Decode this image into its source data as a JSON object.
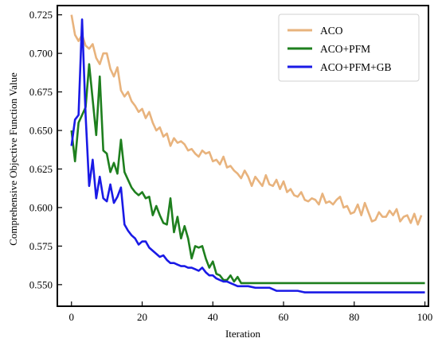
{
  "chart_data": {
    "type": "line",
    "title": "",
    "xlabel": "Iteration",
    "ylabel": "Comprehensive Objective Function Value",
    "xlim": [
      -4,
      101
    ],
    "ylim": [
      0.536,
      0.731
    ],
    "xticks": [
      0,
      20,
      40,
      60,
      80,
      100
    ],
    "yticks": [
      0.55,
      0.575,
      0.6,
      0.625,
      0.65,
      0.675,
      0.7,
      0.725
    ],
    "ytick_labels": [
      "0.550",
      "0.575",
      "0.600",
      "0.625",
      "0.650",
      "0.675",
      "0.700",
      "0.725"
    ],
    "grid": false,
    "legend_position": "top-right",
    "series": [
      {
        "name": "ACO",
        "color": "#E8B37D",
        "x": [
          0,
          1,
          2,
          3,
          4,
          5,
          6,
          7,
          8,
          9,
          10,
          11,
          12,
          13,
          14,
          15,
          16,
          17,
          18,
          19,
          20,
          21,
          22,
          23,
          24,
          25,
          26,
          27,
          28,
          29,
          30,
          31,
          32,
          33,
          34,
          35,
          36,
          37,
          38,
          39,
          40,
          41,
          42,
          43,
          44,
          45,
          46,
          47,
          48,
          49,
          50,
          51,
          52,
          53,
          54,
          55,
          56,
          57,
          58,
          59,
          60,
          61,
          62,
          63,
          64,
          65,
          66,
          67,
          68,
          69,
          70,
          71,
          72,
          73,
          74,
          75,
          76,
          77,
          78,
          79,
          80,
          81,
          82,
          83,
          84,
          85,
          86,
          87,
          88,
          89,
          90,
          91,
          92,
          93,
          94,
          95,
          96,
          97,
          98,
          99
        ],
        "y": [
          0.725,
          0.712,
          0.708,
          0.712,
          0.705,
          0.703,
          0.706,
          0.697,
          0.693,
          0.7,
          0.7,
          0.69,
          0.685,
          0.691,
          0.676,
          0.672,
          0.675,
          0.669,
          0.666,
          0.662,
          0.664,
          0.658,
          0.662,
          0.655,
          0.65,
          0.652,
          0.646,
          0.648,
          0.64,
          0.645,
          0.642,
          0.643,
          0.641,
          0.637,
          0.638,
          0.635,
          0.633,
          0.637,
          0.635,
          0.636,
          0.63,
          0.631,
          0.628,
          0.633,
          0.626,
          0.627,
          0.624,
          0.622,
          0.619,
          0.624,
          0.62,
          0.614,
          0.62,
          0.617,
          0.614,
          0.621,
          0.615,
          0.614,
          0.618,
          0.612,
          0.617,
          0.61,
          0.612,
          0.608,
          0.607,
          0.61,
          0.605,
          0.604,
          0.606,
          0.605,
          0.602,
          0.609,
          0.603,
          0.604,
          0.602,
          0.605,
          0.607,
          0.6,
          0.601,
          0.596,
          0.597,
          0.602,
          0.595,
          0.603,
          0.597,
          0.591,
          0.592,
          0.597,
          0.594,
          0.594,
          0.598,
          0.595,
          0.599,
          0.591,
          0.594,
          0.595,
          0.59,
          0.596,
          0.589,
          0.595
        ],
        "note": ""
      },
      {
        "name": "ACO+PFM",
        "color": "#1E7F1E",
        "x": [
          0,
          1,
          2,
          3,
          4,
          5,
          6,
          7,
          8,
          9,
          10,
          11,
          12,
          13,
          14,
          15,
          16,
          17,
          18,
          19,
          20,
          21,
          22,
          23,
          24,
          25,
          26,
          27,
          28,
          29,
          30,
          31,
          32,
          33,
          34,
          35,
          36,
          37,
          38,
          39,
          40,
          41,
          42,
          43,
          44,
          45,
          46,
          47,
          48,
          49,
          50,
          55,
          60,
          65,
          70,
          75,
          80,
          85,
          90,
          95,
          100
        ],
        "y": [
          0.65,
          0.63,
          0.655,
          0.66,
          0.665,
          0.693,
          0.67,
          0.647,
          0.685,
          0.637,
          0.635,
          0.623,
          0.629,
          0.622,
          0.644,
          0.623,
          0.618,
          0.613,
          0.61,
          0.608,
          0.61,
          0.606,
          0.607,
          0.595,
          0.601,
          0.595,
          0.59,
          0.589,
          0.606,
          0.584,
          0.594,
          0.58,
          0.588,
          0.58,
          0.567,
          0.575,
          0.574,
          0.575,
          0.567,
          0.561,
          0.565,
          0.557,
          0.556,
          0.553,
          0.553,
          0.556,
          0.552,
          0.555,
          0.551,
          0.551,
          0.551,
          0.551,
          0.551,
          0.551,
          0.551,
          0.551,
          0.551,
          0.551,
          0.551,
          0.551,
          0.551
        ]
      },
      {
        "name": "ACO+PFM+GB",
        "color": "#1A1AE6",
        "x": [
          0,
          1,
          2,
          3,
          4,
          5,
          6,
          7,
          8,
          9,
          10,
          11,
          12,
          13,
          14,
          15,
          16,
          17,
          18,
          19,
          20,
          21,
          22,
          23,
          24,
          25,
          26,
          27,
          28,
          29,
          30,
          31,
          32,
          33,
          34,
          35,
          36,
          37,
          38,
          39,
          40,
          41,
          42,
          43,
          44,
          45,
          46,
          47,
          48,
          49,
          50,
          52,
          54,
          56,
          58,
          60,
          62,
          64,
          66,
          68,
          70,
          72,
          74,
          76,
          78,
          80,
          85,
          90,
          95,
          100
        ],
        "y": [
          0.64,
          0.657,
          0.66,
          0.722,
          0.66,
          0.614,
          0.631,
          0.606,
          0.62,
          0.606,
          0.604,
          0.615,
          0.603,
          0.607,
          0.613,
          0.589,
          0.585,
          0.582,
          0.58,
          0.576,
          0.578,
          0.578,
          0.574,
          0.572,
          0.57,
          0.568,
          0.569,
          0.566,
          0.564,
          0.564,
          0.563,
          0.562,
          0.562,
          0.561,
          0.561,
          0.56,
          0.559,
          0.561,
          0.558,
          0.556,
          0.556,
          0.554,
          0.553,
          0.552,
          0.552,
          0.551,
          0.55,
          0.549,
          0.549,
          0.549,
          0.549,
          0.548,
          0.548,
          0.548,
          0.546,
          0.546,
          0.546,
          0.546,
          0.545,
          0.545,
          0.545,
          0.545,
          0.545,
          0.545,
          0.545,
          0.545,
          0.545,
          0.545,
          0.545,
          0.545
        ]
      }
    ]
  }
}
